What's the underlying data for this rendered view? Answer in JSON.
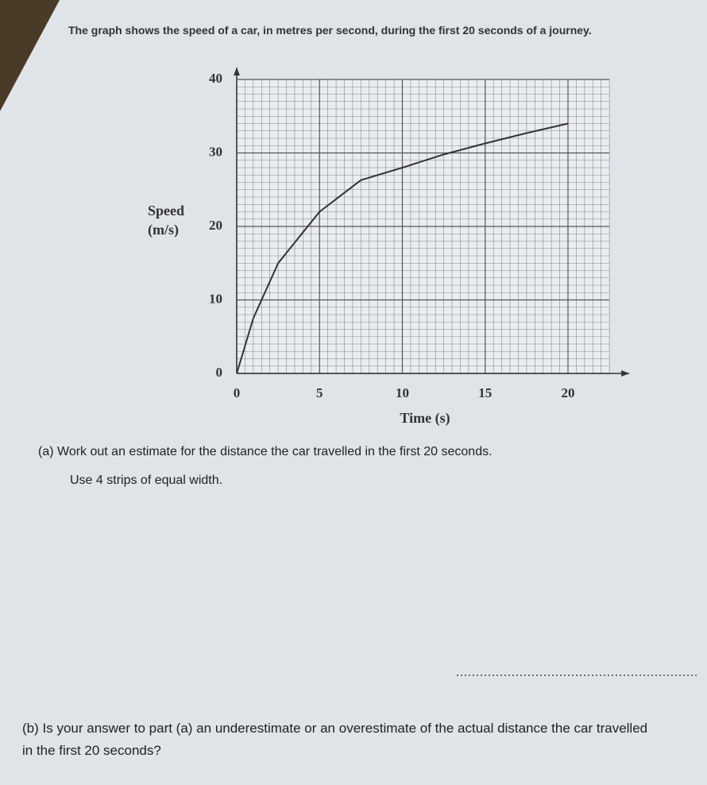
{
  "intro": "The graph shows the speed of a car, in metres per second, during the first 20 seconds of a journey.",
  "chart_data": {
    "type": "line",
    "y_label": "Speed (m/s)",
    "x_label": "Time (s)",
    "x": [
      0,
      1,
      2.5,
      5,
      7.5,
      10,
      12.5,
      15,
      17.5,
      20
    ],
    "values": [
      0,
      7.5,
      15,
      22,
      26.3,
      28,
      29.8,
      31.3,
      32.7,
      34
    ],
    "color": "#333333",
    "xlim": [
      0,
      22.5
    ],
    "ylim": [
      0,
      40
    ],
    "xticks": [
      0,
      5,
      10,
      15,
      20
    ],
    "yticks": [
      0,
      10,
      20,
      30,
      40
    ],
    "grid": true
  },
  "questions": {
    "a": {
      "text": "(a) Work out an estimate for the distance the car travelled in the first 20 seconds.",
      "note": "Use 4 strips of equal width."
    },
    "b": {
      "text": "(b) Is your answer to part (a) an underestimate or an overestimate of the actual distance the car travelled in the first 20 seconds?"
    }
  }
}
